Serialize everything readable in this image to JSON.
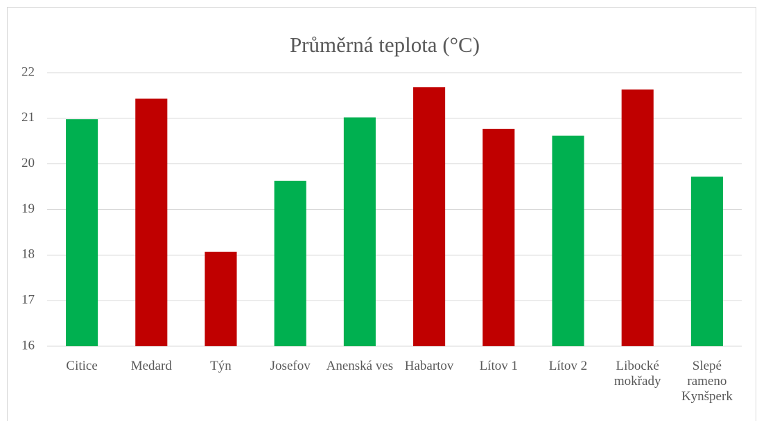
{
  "chart_data": {
    "type": "bar",
    "title": "Průměrná teplota (°C)",
    "categories": [
      "Citice",
      "Medard",
      "Týn",
      "Josefov",
      "Anenská ves",
      "Habartov",
      "Lítov 1",
      "Lítov 2",
      "Libocké mokřady",
      "Slepé rameno Kynšperk"
    ],
    "values": [
      20.98,
      21.43,
      18.07,
      19.63,
      21.02,
      21.68,
      20.77,
      20.62,
      21.63,
      19.72
    ],
    "colors": [
      "#00b050",
      "#c00000",
      "#c00000",
      "#00b050",
      "#00b050",
      "#c00000",
      "#c00000",
      "#00b050",
      "#c00000",
      "#00b050"
    ],
    "ylim": [
      16,
      22
    ],
    "yticks": [
      16,
      17,
      18,
      19,
      20,
      21,
      22
    ],
    "grid": true
  }
}
